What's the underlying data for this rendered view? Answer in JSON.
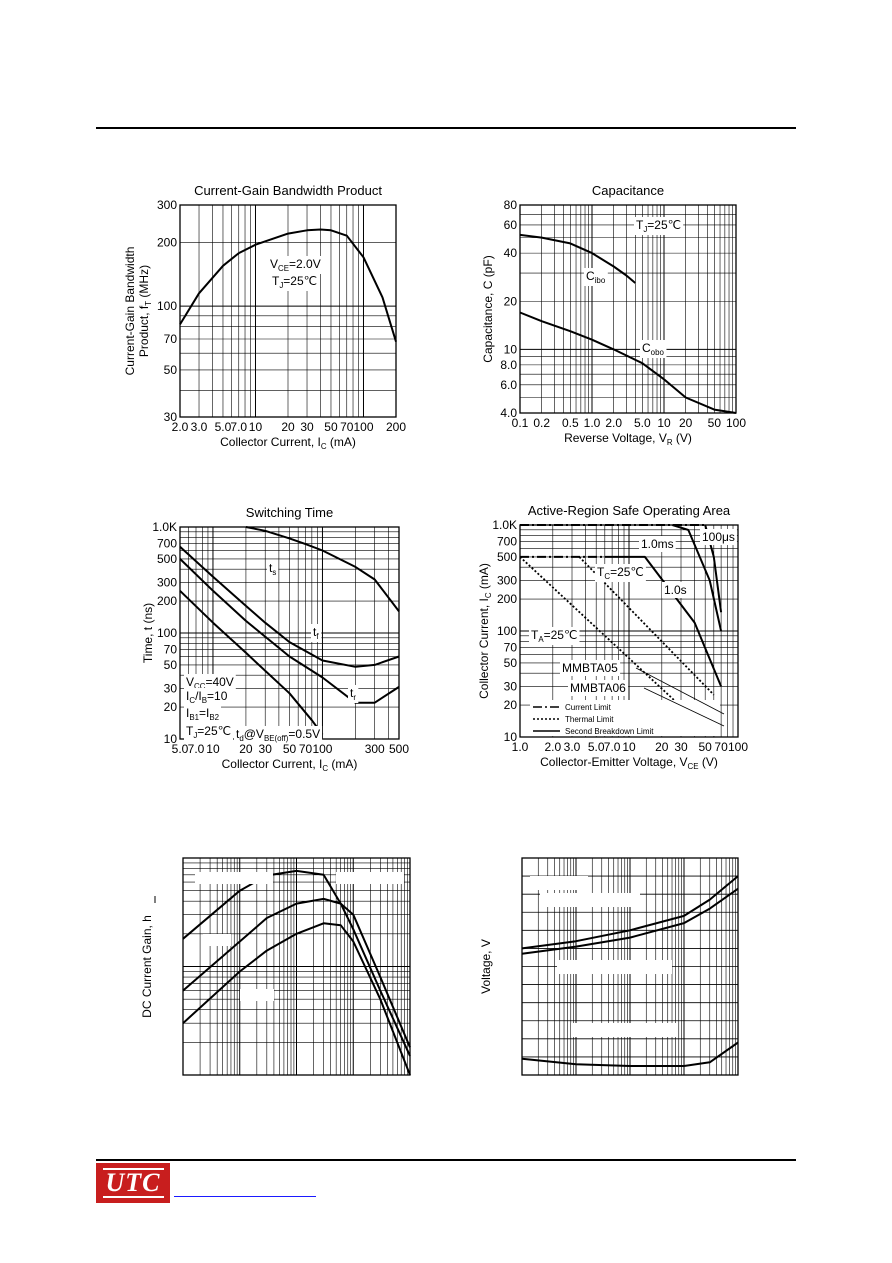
{
  "footer": {
    "logo_text": "UTC"
  },
  "chart_data": [
    {
      "id": "fT",
      "type": "line",
      "title": "Current-Gain Bandwidth Product",
      "xlabel": "Collector Current, I",
      "xlabel_sub": "C",
      "xlabel_tail": " (mA)",
      "ylabel": "Current-Gain Bandwidth",
      "ylabel2": "Product, f",
      "ylabel2_sub": "T",
      "ylabel2_tail": " (MHz)",
      "xscale": "log",
      "yscale": "log",
      "xlim": [
        2,
        200
      ],
      "ylim": [
        30,
        300
      ],
      "xtick_labels": [
        "2.0",
        "3.0",
        "5.0",
        "7.0",
        "10",
        "20",
        "30",
        "50",
        "70",
        "100",
        "200"
      ],
      "ytick_labels": [
        "30",
        "50",
        "70",
        "100",
        "200",
        "300"
      ],
      "annotations": [
        {
          "main": "V",
          "sub": "CE",
          "tail": "=2.0V"
        },
        {
          "main": "T",
          "sub": "J",
          "tail": "=25℃"
        }
      ],
      "series": [
        {
          "x": [
            2,
            3,
            5,
            7,
            10,
            20,
            30,
            40,
            50,
            70,
            100,
            150,
            200
          ],
          "y": [
            82,
            115,
            155,
            178,
            195,
            220,
            228,
            230,
            228,
            215,
            170,
            110,
            68
          ]
        }
      ]
    },
    {
      "id": "cap",
      "type": "line",
      "title": "Capacitance",
      "xlabel": "Reverse Voltage, V",
      "xlabel_sub": "R",
      "xlabel_tail": " (V)",
      "ylabel": "Capacitance, C (pF)",
      "xscale": "log",
      "yscale": "log",
      "xlim": [
        0.1,
        100
      ],
      "ylim": [
        4,
        80
      ],
      "xtick_labels": [
        "0.1",
        "0.2",
        "0.5",
        "1.0",
        "2.0",
        "5.0",
        "10",
        "20",
        "50",
        "100"
      ],
      "ytick_labels": [
        "4.0",
        "6.0",
        "8.0",
        "10",
        "20",
        "40",
        "60",
        "80"
      ],
      "annotations": [
        {
          "main": "T",
          "sub": "J",
          "tail": "=25℃"
        }
      ],
      "series": [
        {
          "name": "Cibo",
          "name_main": "C",
          "name_sub": "ibo",
          "x": [
            0.1,
            0.2,
            0.5,
            1,
            2,
            3,
            4
          ],
          "y": [
            52,
            50,
            46,
            40,
            33,
            29,
            26
          ]
        },
        {
          "name": "Cobo",
          "name_main": "C",
          "name_sub": "obo",
          "x": [
            0.1,
            0.2,
            0.5,
            1,
            2,
            5,
            10,
            20,
            50,
            100
          ],
          "y": [
            17,
            15,
            13,
            11.5,
            10,
            8.2,
            6.5,
            5,
            4.2,
            4.0
          ]
        }
      ]
    },
    {
      "id": "sw",
      "type": "line",
      "title": "Switching Time",
      "xlabel": "Collector Current, I",
      "xlabel_sub": "C",
      "xlabel_tail": " (mA)",
      "ylabel": "Time, t (ns)",
      "xscale": "log",
      "yscale": "log",
      "xlim": [
        5,
        500
      ],
      "ylim": [
        10,
        1000
      ],
      "xtick_labels": [
        "5.0",
        "7.0",
        "10",
        "20",
        "30",
        "50",
        "70",
        "100",
        "300",
        "500"
      ],
      "ytick_labels": [
        "10",
        "20",
        "30",
        "50",
        "70",
        "100",
        "200",
        "300",
        "500",
        "700",
        "1.0K"
      ],
      "annotations": [
        {
          "main": "V",
          "sub": "CC",
          "tail": "=40V"
        },
        {
          "main": "I",
          "sub": "C",
          "tail": "/I",
          "sub2": "B",
          "tail2": "=10"
        },
        {
          "main": "I",
          "sub": "B1",
          "tail": "=I",
          "sub2": "B2",
          "tail2": ""
        },
        {
          "main": "T",
          "sub": "J",
          "tail": "=25℃"
        },
        {
          "main": "t",
          "sub": "d",
          "tail": "@V",
          "sub2": "BE(off)",
          "tail2": "=0.5V"
        }
      ],
      "series": [
        {
          "name": "ts",
          "name_main": "t",
          "name_sub": "s",
          "x": [
            20,
            30,
            50,
            70,
            100,
            200,
            300,
            500
          ],
          "y": [
            1000,
            920,
            780,
            690,
            600,
            420,
            320,
            160
          ]
        },
        {
          "name": "tf",
          "name_main": "t",
          "name_sub": "f",
          "x": [
            5,
            10,
            20,
            30,
            50,
            100,
            200,
            300,
            500
          ],
          "y": [
            650,
            340,
            180,
            125,
            82,
            55,
            48,
            50,
            60
          ]
        },
        {
          "name": "tr",
          "name_main": "t",
          "name_sub": "r",
          "x": [
            5,
            10,
            20,
            50,
            100,
            200,
            300,
            500
          ],
          "y": [
            500,
            250,
            130,
            60,
            38,
            22,
            22,
            31
          ]
        },
        {
          "name": "td",
          "x": [
            5,
            10,
            20,
            50,
            80,
            100
          ],
          "y": [
            250,
            125,
            65,
            27,
            15,
            11
          ]
        }
      ]
    },
    {
      "id": "soa",
      "type": "line",
      "title": "Active-Region Safe Operating Area",
      "xlabel": "Collector-Emitter Voltage, V",
      "xlabel_sub": "CE",
      "xlabel_tail": " (V)",
      "ylabel": "Collector Current, I",
      "ylabel_sub": "C",
      "ylabel_tail": " (mA)",
      "xscale": "log",
      "yscale": "log",
      "xlim": [
        1,
        100
      ],
      "ylim": [
        10,
        1000
      ],
      "xtick_labels": [
        "1.0",
        "2.0",
        "3.0",
        "5.0",
        "7.0",
        "10",
        "20",
        "30",
        "50",
        "70",
        "100"
      ],
      "ytick_labels": [
        "10",
        "20",
        "30",
        "50",
        "70",
        "100",
        "200",
        "300",
        "500",
        "700",
        "1.0K"
      ],
      "annotations": [
        {
          "main": "T",
          "sub": "C",
          "tail": "=25℃"
        },
        {
          "main": "T",
          "sub": "A",
          "tail": "=25℃"
        }
      ],
      "labels": [
        "100μs",
        "1.0ms",
        "1.0s",
        "MMBTA05",
        "MMBTA06"
      ],
      "legend": [
        "Current Limit",
        "Thermal Limit",
        "Second Breakdown Limit"
      ],
      "series": [
        {
          "name": "Current Limit",
          "style": "dashdot",
          "x": [
            1,
            50
          ],
          "y": [
            1000,
            1000
          ]
        },
        {
          "name": "Current Limit",
          "style": "dashdot",
          "x": [
            1,
            7
          ],
          "y": [
            500,
            500
          ]
        },
        {
          "name": "Thermal Limit",
          "style": "dotted",
          "x": [
            1,
            60
          ],
          "y": [
            500,
            10
          ]
        },
        {
          "name": "Thermal Limit",
          "style": "dotted",
          "x": [
            3.5,
            60
          ],
          "y": [
            500,
            25
          ]
        },
        {
          "name": "Second Breakdown Limit",
          "style": "solid",
          "x": [
            7,
            14,
            40,
            70
          ],
          "y": [
            500,
            500,
            120,
            30
          ]
        },
        {
          "name": "Second Breakdown Limit",
          "style": "solid",
          "x": [
            25,
            35,
            55,
            70
          ],
          "y": [
            1000,
            900,
            300,
            100
          ]
        },
        {
          "name": "Second Breakdown Limit",
          "style": "solid",
          "x": [
            50,
            60,
            70
          ],
          "y": [
            1000,
            500,
            150
          ]
        }
      ]
    },
    {
      "id": "hfe",
      "type": "line",
      "ylabel": "DC Current Gain, h",
      "xscale": "log",
      "yscale": "log",
      "xlim": [
        0.1,
        1000
      ],
      "ylim": [
        10,
        1000
      ],
      "series": [
        {
          "x": [
            0.1,
            1,
            3,
            10,
            30,
            60,
            100,
            300,
            1000
          ],
          "y": [
            180,
            500,
            690,
            760,
            700,
            380,
            220,
            60,
            15
          ]
        },
        {
          "x": [
            0.1,
            1,
            3,
            10,
            30,
            60,
            100,
            300,
            1000
          ],
          "y": [
            60,
            170,
            280,
            380,
            420,
            380,
            300,
            80,
            18
          ]
        },
        {
          "x": [
            0.1,
            1,
            3,
            10,
            30,
            60,
            100,
            300,
            1000
          ],
          "y": [
            30,
            90,
            140,
            200,
            250,
            240,
            170,
            50,
            10
          ]
        }
      ]
    },
    {
      "id": "vsat",
      "type": "line",
      "ylabel": "Voltage, V",
      "xscale": "log",
      "yscale": "linear",
      "xlim": [
        0.1,
        1000
      ],
      "ylim": [
        0,
        1.2
      ],
      "series": [
        {
          "x": [
            0.1,
            1,
            10,
            100,
            300,
            1000
          ],
          "y": [
            0.7,
            0.74,
            0.8,
            0.88,
            0.97,
            1.1
          ]
        },
        {
          "x": [
            0.1,
            1,
            10,
            100,
            300,
            1000
          ],
          "y": [
            0.67,
            0.71,
            0.76,
            0.84,
            0.92,
            1.03
          ]
        },
        {
          "x": [
            0.1,
            1,
            10,
            100,
            300,
            1000
          ],
          "y": [
            0.09,
            0.06,
            0.05,
            0.05,
            0.07,
            0.18
          ]
        }
      ]
    }
  ]
}
